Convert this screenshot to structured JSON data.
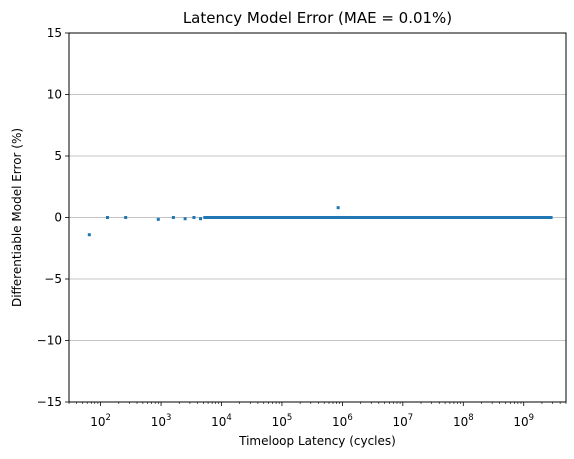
{
  "chart_data": {
    "type": "scatter",
    "title": "Latency Model Error (MAE = 0.01%)",
    "xlabel": "Timeloop Latency (cycles)",
    "ylabel": "Differentiable Model Error (%)",
    "xscale": "log",
    "xlim": [
      30,
      5000000000
    ],
    "ylim": [
      -15,
      15
    ],
    "x_tick_labels": [
      {
        "base": "10",
        "exp": "2",
        "value": 100
      },
      {
        "base": "10",
        "exp": "3",
        "value": 1000
      },
      {
        "base": "10",
        "exp": "4",
        "value": 10000
      },
      {
        "base": "10",
        "exp": "5",
        "value": 100000
      },
      {
        "base": "10",
        "exp": "6",
        "value": 1000000
      },
      {
        "base": "10",
        "exp": "7",
        "value": 10000000
      },
      {
        "base": "10",
        "exp": "8",
        "value": 100000000
      },
      {
        "base": "10",
        "exp": "9",
        "value": 1000000000
      }
    ],
    "y_ticks": [
      {
        "value": 15,
        "label": "15"
      },
      {
        "value": 10,
        "label": "10"
      },
      {
        "value": 5,
        "label": "5"
      },
      {
        "value": 0,
        "label": "0"
      },
      {
        "value": -5,
        "label": "−5"
      },
      {
        "value": -10,
        "label": "−10"
      },
      {
        "value": -15,
        "label": "−15"
      }
    ],
    "grid": "y-major",
    "marker_color": "#1f77b4",
    "outlier_points": [
      {
        "x": 65,
        "y": -1.4
      },
      {
        "x": 130,
        "y": 0.0
      },
      {
        "x": 260,
        "y": 0.0
      },
      {
        "x": 900,
        "y": -0.15
      },
      {
        "x": 1600,
        "y": 0.0
      },
      {
        "x": 2500,
        "y": -0.1
      },
      {
        "x": 3500,
        "y": 0.0
      },
      {
        "x": 4500,
        "y": -0.1
      },
      {
        "x": 850000,
        "y": 0.8
      }
    ],
    "dense_band": {
      "x_start": 5000,
      "x_end": 3000000000,
      "y": 0.0
    }
  }
}
